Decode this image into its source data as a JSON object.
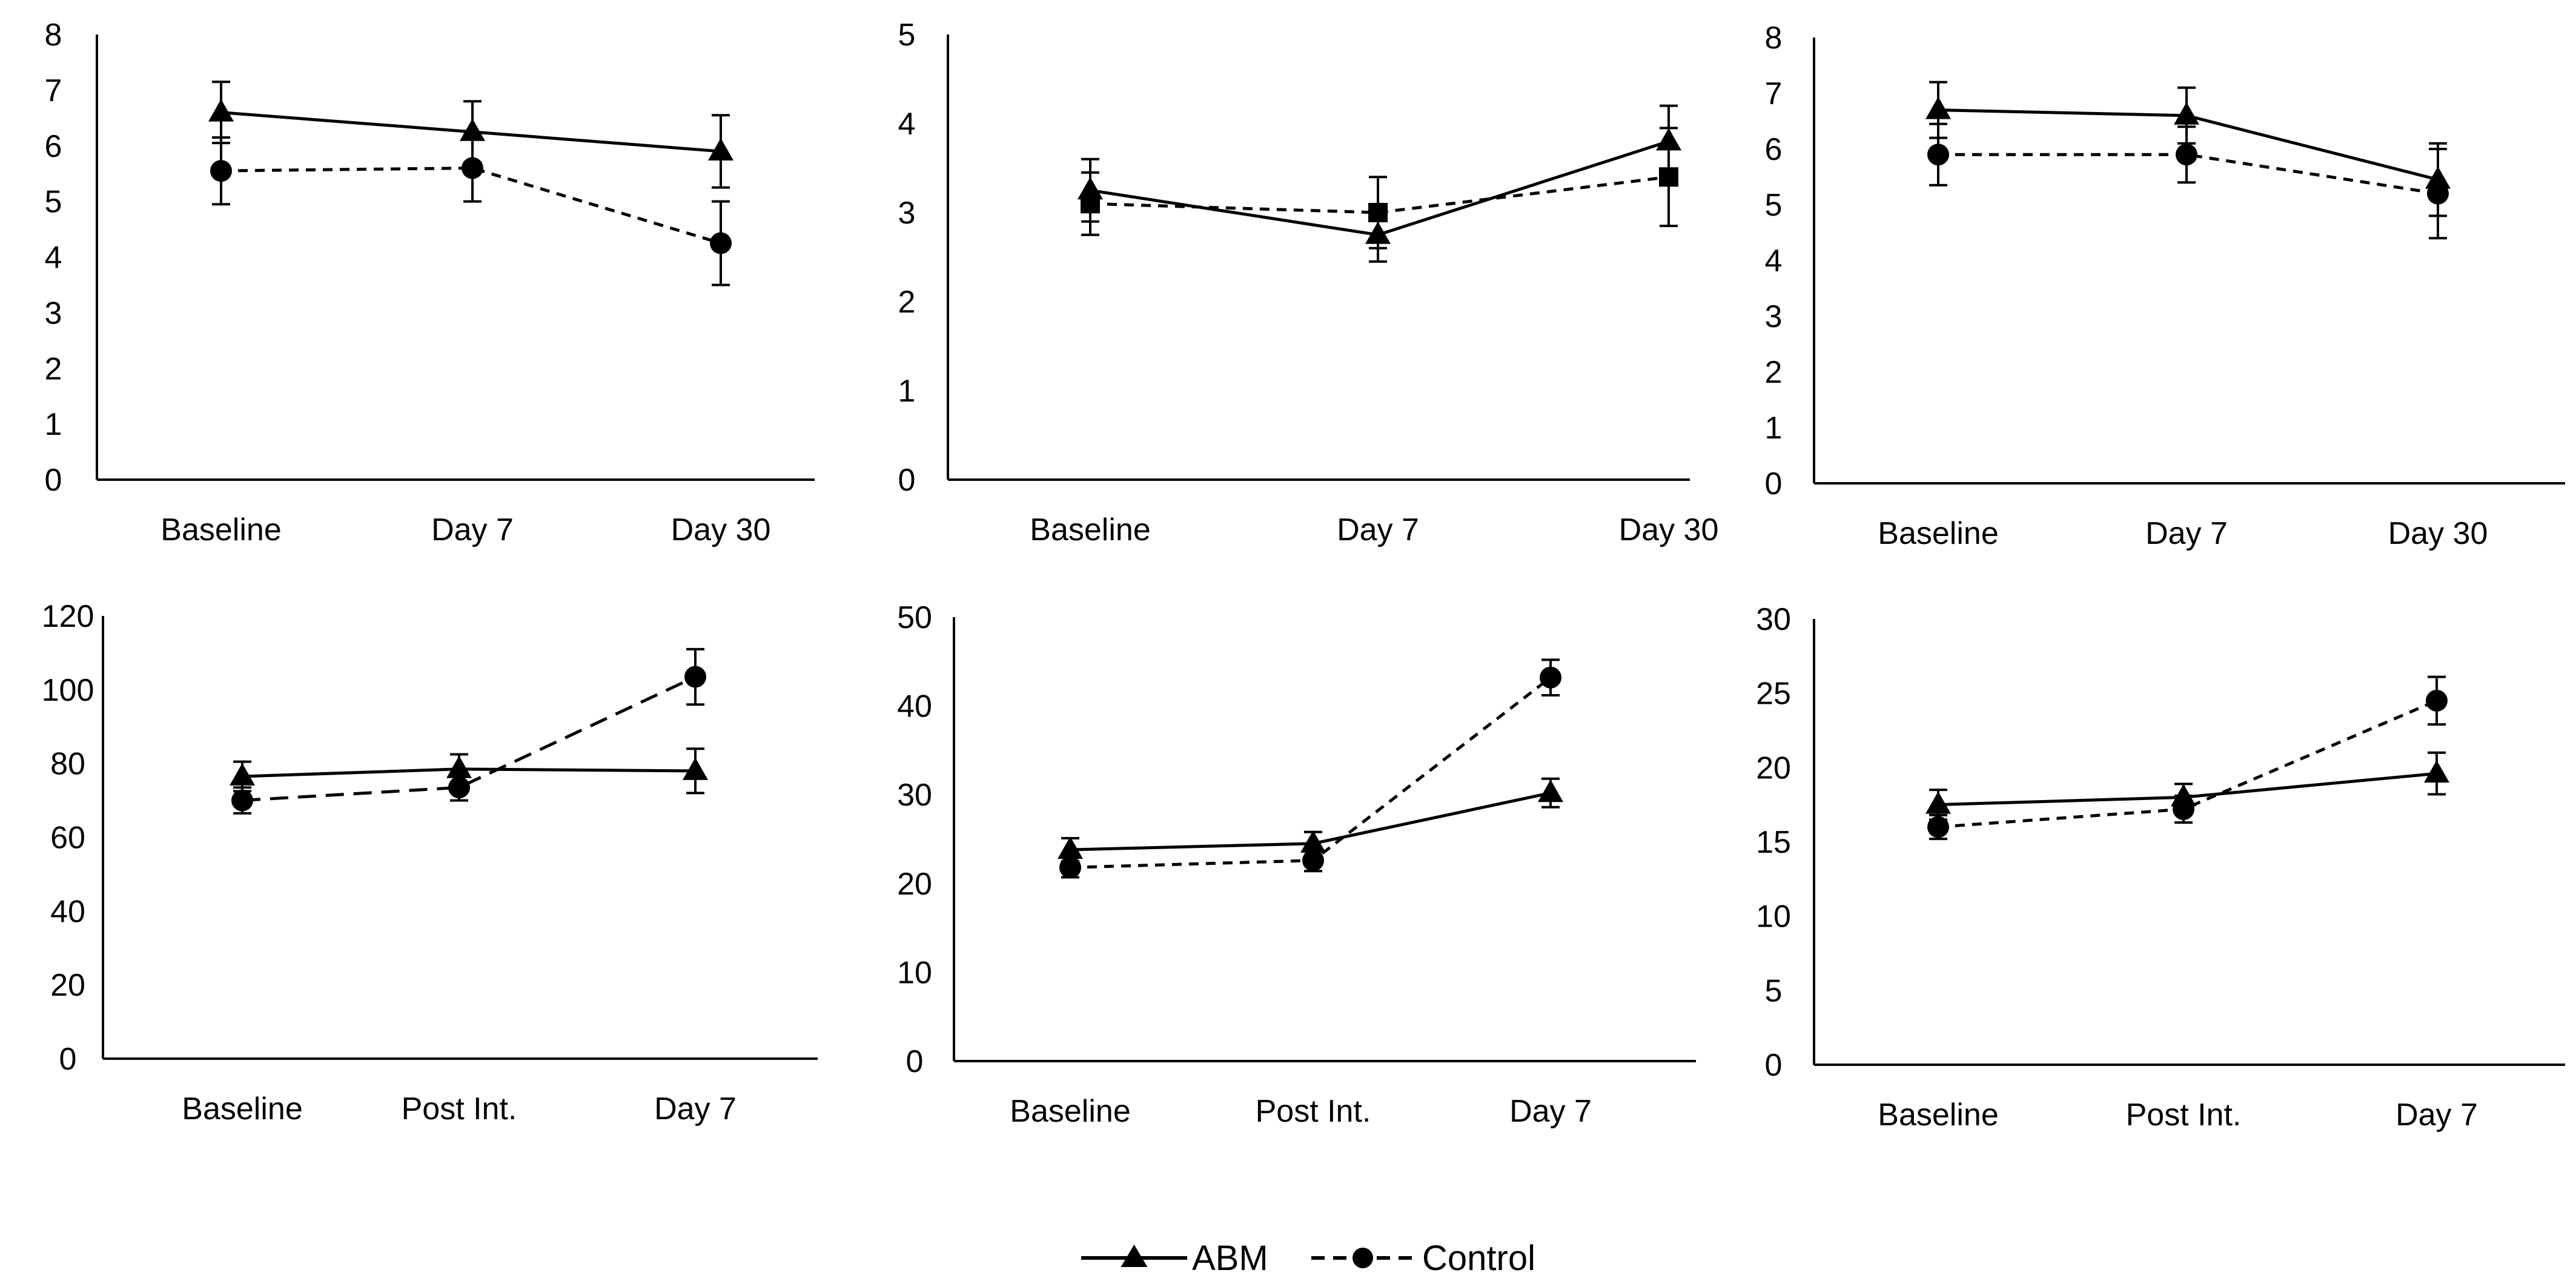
{
  "legend": {
    "abm": "ABM",
    "control": "Control"
  },
  "chart_data": [
    {
      "type": "line",
      "categories": [
        "Baseline",
        "Day 7",
        "Day 30"
      ],
      "ylim": [
        0,
        8
      ],
      "ytick_step": 1,
      "series": [
        {
          "name": "ABM",
          "marker": "triangle",
          "dash": "solid",
          "values": [
            6.6,
            6.25,
            5.9
          ],
          "errors": [
            0.55,
            0.55,
            0.65
          ]
        },
        {
          "name": "Control",
          "marker": "circle",
          "dash": "short",
          "values": [
            5.55,
            5.6,
            4.25
          ],
          "errors": [
            0.6,
            0.6,
            0.75
          ]
        }
      ]
    },
    {
      "type": "line",
      "categories": [
        "Baseline",
        "Day 7",
        "Day 30"
      ],
      "ylim": [
        0,
        5
      ],
      "ytick_step": 1,
      "series": [
        {
          "name": "ABM",
          "marker": "triangle",
          "dash": "solid",
          "values": [
            3.25,
            2.75,
            3.8
          ],
          "errors": [
            0.35,
            0.3,
            0.4
          ]
        },
        {
          "name": "Control",
          "marker": "square",
          "dash": "short",
          "values": [
            3.1,
            3.0,
            3.4
          ],
          "errors": [
            0.35,
            0.4,
            0.55
          ]
        }
      ]
    },
    {
      "type": "line",
      "categories": [
        "Baseline",
        "Day 7",
        "Day 30"
      ],
      "ylim": [
        0,
        8
      ],
      "ytick_step": 1,
      "series": [
        {
          "name": "ABM",
          "marker": "triangle",
          "dash": "solid",
          "values": [
            6.7,
            6.6,
            5.45
          ],
          "errors": [
            0.5,
            0.5,
            0.65
          ]
        },
        {
          "name": "Control",
          "marker": "circle",
          "dash": "short",
          "values": [
            5.9,
            5.9,
            5.2
          ],
          "errors": [
            0.55,
            0.5,
            0.8
          ]
        }
      ]
    },
    {
      "type": "line",
      "categories": [
        "Baseline",
        "Post Int.",
        "Day 7"
      ],
      "ylim": [
        0,
        120
      ],
      "ytick_step": 20,
      "series": [
        {
          "name": "ABM",
          "marker": "triangle",
          "dash": "solid",
          "values": [
            76.5,
            78.5,
            78.0
          ],
          "errors": [
            4,
            4,
            6
          ]
        },
        {
          "name": "Control",
          "marker": "circle",
          "dash": "long",
          "values": [
            70.0,
            73.5,
            103.5
          ],
          "errors": [
            3.5,
            3.5,
            7.5
          ]
        }
      ]
    },
    {
      "type": "line",
      "categories": [
        "Baseline",
        "Post Int.",
        "Day 7"
      ],
      "ylim": [
        0,
        50
      ],
      "ytick_step": 10,
      "series": [
        {
          "name": "ABM",
          "marker": "triangle",
          "dash": "solid",
          "values": [
            23.8,
            24.5,
            30.2
          ],
          "errors": [
            1.3,
            1.3,
            1.6
          ]
        },
        {
          "name": "Control",
          "marker": "circle",
          "dash": "short",
          "values": [
            21.8,
            22.6,
            43.2
          ],
          "errors": [
            1.1,
            1.2,
            2.0
          ]
        }
      ]
    },
    {
      "type": "line",
      "categories": [
        "Baseline",
        "Post Int.",
        "Day 7"
      ],
      "ylim": [
        0,
        30
      ],
      "ytick_step": 5,
      "series": [
        {
          "name": "ABM",
          "marker": "triangle",
          "dash": "solid",
          "values": [
            17.5,
            18.0,
            19.6
          ],
          "errors": [
            1.0,
            0.9,
            1.4
          ]
        },
        {
          "name": "Control",
          "marker": "circle",
          "dash": "short",
          "values": [
            16.0,
            17.2,
            24.5
          ],
          "errors": [
            0.8,
            0.9,
            1.6
          ]
        }
      ]
    }
  ]
}
